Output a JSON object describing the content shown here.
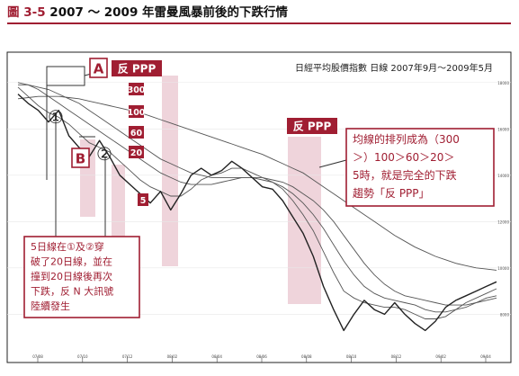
{
  "figure": {
    "number": "圖 3-5",
    "caption": "2007 ～ 2009 年雷曼風暴前後的下跌行情"
  },
  "colors": {
    "accent": "#a01e32",
    "band": "#e9c6cf",
    "price": "#222222",
    "ma": "#555555"
  },
  "chart_data": {
    "type": "line",
    "title": "日經平均股價指數 日線 2007年9月～2009年5月",
    "xlabel": "",
    "ylabel": "",
    "x_tick_labels": [
      "07/08",
      "07/10",
      "07/12",
      "08/02",
      "08/04",
      "08/06",
      "08/08",
      "08/10",
      "08/12",
      "09/02",
      "09/04"
    ],
    "y_tick_labels": [
      "18000",
      "16000",
      "14000",
      "12000",
      "10000",
      "8000"
    ],
    "ylim": [
      6500,
      19000
    ],
    "series": [
      {
        "role": "price",
        "values": [
          17500,
          17100,
          16800,
          16300,
          16800,
          15700,
          15200,
          14800,
          15500,
          14800,
          14000,
          13600,
          13200,
          12800,
          13300,
          12500,
          13200,
          14000,
          14300,
          14000,
          14200,
          14600,
          14300,
          13900,
          13500,
          13400,
          12900,
          12200,
          11500,
          10500,
          9200,
          8200,
          7300,
          8000,
          8600,
          8200,
          8000,
          8500,
          8000,
          7600,
          7300,
          7700,
          8300,
          8600,
          8800,
          9000,
          9200,
          9400
        ]
      },
      {
        "role": "ma",
        "period": 20,
        "values": [
          17800,
          17400,
          17000,
          16700,
          16500,
          16200,
          15800,
          15400,
          15200,
          15000,
          14600,
          14200,
          13800,
          13500,
          13300,
          13100,
          13100,
          13400,
          13800,
          14000,
          14100,
          14300,
          14300,
          14100,
          13900,
          13700,
          13400,
          12900,
          12300,
          11600,
          10700,
          9800,
          9000,
          8700,
          8500,
          8400,
          8300,
          8300,
          8200,
          8000,
          7800,
          7800,
          7900,
          8200,
          8500,
          8700,
          8900,
          9100
        ]
      },
      {
        "role": "ma",
        "period": 60,
        "values": [
          18000,
          17900,
          17700,
          17400,
          17100,
          16800,
          16500,
          16200,
          15900,
          15600,
          15300,
          15000,
          14700,
          14400,
          14100,
          13900,
          13700,
          13600,
          13600,
          13600,
          13700,
          13800,
          13900,
          13900,
          13800,
          13700,
          13500,
          13200,
          12800,
          12300,
          11700,
          11000,
          10300,
          9700,
          9200,
          8900,
          8700,
          8600,
          8500,
          8400,
          8200,
          8100,
          8100,
          8200,
          8300,
          8500,
          8700,
          8800
        ]
      },
      {
        "role": "ma",
        "period": 100,
        "values": [
          17900,
          17900,
          17800,
          17700,
          17500,
          17300,
          17100,
          16800,
          16500,
          16200,
          15900,
          15600,
          15300,
          15000,
          14700,
          14500,
          14300,
          14100,
          14000,
          13900,
          13900,
          13900,
          13900,
          13900,
          13900,
          13800,
          13700,
          13500,
          13200,
          12900,
          12500,
          12000,
          11400,
          10800,
          10200,
          9700,
          9300,
          9000,
          8800,
          8700,
          8600,
          8500,
          8400,
          8400,
          8400,
          8500,
          8600,
          8700
        ]
      },
      {
        "role": "ma",
        "period": 300,
        "values": [
          17300,
          17350,
          17400,
          17400,
          17400,
          17350,
          17300,
          17200,
          17100,
          17000,
          16900,
          16800,
          16700,
          16550,
          16400,
          16250,
          16100,
          15950,
          15800,
          15650,
          15500,
          15350,
          15200,
          15050,
          14900,
          14700,
          14500,
          14300,
          14100,
          13800,
          13500,
          13200,
          12900,
          12600,
          12300,
          12000,
          11700,
          11400,
          11150,
          10900,
          10700,
          10500,
          10350,
          10200,
          10100,
          10000,
          9950,
          9900
        ]
      }
    ],
    "annotations": [
      {
        "type": "label",
        "text": "反 PPP"
      },
      {
        "type": "label",
        "text": "反 PPP"
      },
      {
        "type": "marker",
        "text": "A"
      },
      {
        "type": "marker",
        "text": "B"
      },
      {
        "type": "marker",
        "text": "①"
      },
      {
        "type": "marker",
        "text": "②"
      },
      {
        "type": "ma-order",
        "items": [
          "300",
          "100",
          "60",
          "20",
          "5"
        ]
      },
      {
        "type": "callout",
        "lines": [
          "均線的排列成為（300",
          "＞）100＞60＞20＞",
          "5時，就是完全的下跌",
          "趨勢「反 PPP」"
        ]
      },
      {
        "type": "callout",
        "lines": [
          "5日線在①及②穿",
          "破了20日線，並在",
          "撞到20日線後再次",
          "下跌，反 N 大訊號",
          "陸續發生"
        ]
      }
    ]
  }
}
